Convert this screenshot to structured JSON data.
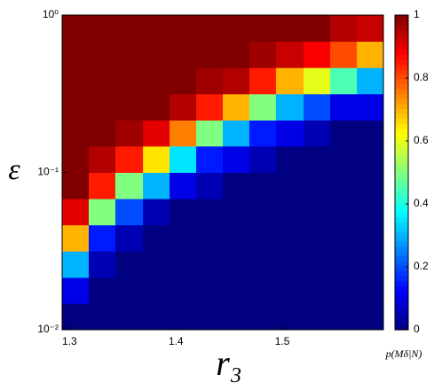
{
  "chart_data": {
    "type": "heatmap",
    "xlabel": "r₃",
    "ylabel": "ε",
    "colorbar_label": "p(Mδ|N)",
    "colormap": "jet",
    "x_edges": [
      1.293,
      1.318,
      1.343,
      1.369,
      1.394,
      1.419,
      1.444,
      1.469,
      1.494,
      1.52,
      1.545,
      1.57,
      1.595
    ],
    "y_edges": [
      0.01,
      0.0147,
      0.0215,
      0.0316,
      0.0464,
      0.0681,
      0.1,
      0.147,
      0.215,
      0.316,
      0.464,
      0.681,
      1
    ],
    "z": [
      [
        0,
        0,
        0,
        0,
        0,
        0,
        0,
        0,
        0,
        0,
        0,
        0
      ],
      [
        0.1,
        0,
        0,
        0,
        0,
        0,
        0,
        0,
        0,
        0,
        0,
        0
      ],
      [
        0.3,
        0.05,
        0,
        0,
        0,
        0,
        0,
        0,
        0,
        0,
        0,
        0
      ],
      [
        0.7,
        0.15,
        0.05,
        0,
        0,
        0,
        0,
        0,
        0,
        0,
        0,
        0
      ],
      [
        0.9,
        0.5,
        0.2,
        0.05,
        0,
        0,
        0,
        0,
        0,
        0,
        0,
        0
      ],
      [
        1,
        0.85,
        0.5,
        0.3,
        0.1,
        0.05,
        0,
        0,
        0,
        0,
        0,
        0
      ],
      [
        1,
        0.95,
        0.85,
        0.65,
        0.35,
        0.15,
        0.1,
        0.05,
        0,
        0,
        0,
        0
      ],
      [
        1,
        1,
        0.97,
        0.9,
        0.75,
        0.5,
        0.3,
        0.15,
        0.1,
        0.05,
        0,
        0
      ],
      [
        1,
        1,
        1,
        1,
        0.95,
        0.85,
        0.7,
        0.5,
        0.3,
        0.2,
        0.1,
        0.1
      ],
      [
        1,
        1,
        1,
        1,
        1,
        0.97,
        0.95,
        0.85,
        0.7,
        0.6,
        0.45,
        0.3
      ],
      [
        1,
        1,
        1,
        1,
        1,
        1,
        1,
        0.97,
        0.93,
        0.88,
        0.8,
        0.7
      ],
      [
        1,
        1,
        1,
        1,
        1,
        1,
        1,
        1,
        1,
        1,
        0.95,
        0.93
      ]
    ],
    "xlim": [
      1.293,
      1.595
    ],
    "ylim": [
      0.01,
      1
    ],
    "log_y": true,
    "xticks": [
      1.3,
      1.4,
      1.5
    ],
    "yticks": [
      {
        "value": 0.01,
        "label": "10⁻²"
      },
      {
        "value": 0.1,
        "label": "10⁻¹"
      },
      {
        "value": 1,
        "label": "10⁰"
      }
    ],
    "clim": [
      0,
      1
    ],
    "cticks": [
      0,
      0.2,
      0.4,
      0.6,
      0.8,
      1
    ]
  }
}
